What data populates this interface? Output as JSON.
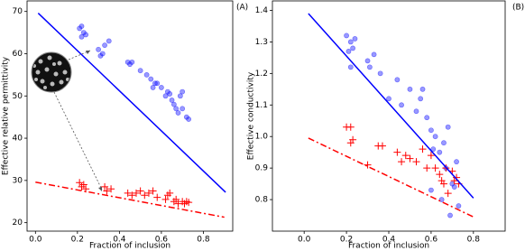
{
  "chart_data": [
    {
      "type": "scatter",
      "annotation": "(A)",
      "xlabel": "Fraction of inclusion",
      "ylabel": "Effective relative permittivity",
      "xlim": [
        -0.04,
        0.94
      ],
      "ylim": [
        18,
        72.5
      ],
      "xticks": [
        {
          "value": 0,
          "label": "0.0"
        },
        0.2,
        0.4,
        0.6,
        0.8
      ],
      "yticks": [
        20,
        30,
        40,
        50,
        60,
        70
      ],
      "series": [
        {
          "marker": "circle",
          "color": "#0000ff",
          "x": [
            0.21,
            0.22,
            0.23,
            0.24,
            0.22,
            0.3,
            0.32,
            0.33,
            0.35,
            0.31,
            0.44,
            0.46,
            0.45,
            0.5,
            0.53,
            0.55,
            0.56,
            0.57,
            0.6,
            0.62,
            0.63,
            0.65,
            0.66,
            0.67,
            0.68,
            0.7,
            0.72,
            0.69,
            0.7,
            0.73,
            0.58,
            0.64
          ],
          "y": [
            66,
            66.5,
            65,
            64.5,
            64,
            61,
            60,
            62,
            63,
            59.5,
            58,
            58,
            57.5,
            56,
            55,
            54,
            52,
            53,
            52,
            50,
            51,
            49,
            48,
            47,
            46,
            47,
            45,
            50,
            51,
            44.5,
            53,
            50.5
          ]
        },
        {
          "marker": "plus",
          "color": "#ff0000",
          "x": [
            0.21,
            0.22,
            0.23,
            0.24,
            0.33,
            0.34,
            0.36,
            0.44,
            0.46,
            0.48,
            0.5,
            0.52,
            0.54,
            0.56,
            0.58,
            0.62,
            0.63,
            0.64,
            0.66,
            0.67,
            0.68,
            0.7,
            0.71,
            0.72,
            0.73
          ],
          "y": [
            29.5,
            28.5,
            29,
            28,
            28.5,
            27.5,
            28,
            27,
            26.5,
            27,
            27.5,
            26.5,
            27,
            27.5,
            26,
            25.5,
            26.5,
            27,
            25,
            25.5,
            24.5,
            25,
            24.5,
            25,
            24.8
          ]
        },
        {
          "marker": "line",
          "style": "solid",
          "color": "#0000ff",
          "x": [
            0.013,
            0.906
          ],
          "y": [
            69.6,
            27.2
          ]
        },
        {
          "marker": "line",
          "style": "dashdot",
          "color": "#ff0000",
          "x": [
            0.0,
            0.9
          ],
          "y": [
            29.6,
            21.3
          ]
        }
      ]
    },
    {
      "type": "scatter",
      "annotation": "(B)",
      "xlabel": "Fraction of inclusion",
      "ylabel": "Effective conductivity",
      "xlim": [
        -0.15,
        0.95
      ],
      "ylim": [
        0.7,
        1.43
      ],
      "xticks": [
        {
          "value": 0,
          "label": "0.0"
        },
        0.2,
        0.4,
        0.6,
        0.8
      ],
      "yticks": [
        0.8,
        0.9,
        {
          "value": 1,
          "label": "1.0"
        },
        1.1,
        1.2,
        1.3,
        1.4
      ],
      "series": [
        {
          "marker": "circle",
          "color": "#0000ff",
          "x": [
            0.2,
            0.22,
            0.21,
            0.23,
            0.22,
            0.24,
            0.3,
            0.31,
            0.33,
            0.36,
            0.4,
            0.44,
            0.46,
            0.5,
            0.53,
            0.56,
            0.55,
            0.58,
            0.6,
            0.61,
            0.62,
            0.64,
            0.66,
            0.67,
            0.68,
            0.7,
            0.71,
            0.72,
            0.73,
            0.69,
            0.6,
            0.65
          ],
          "y": [
            1.32,
            1.3,
            1.27,
            1.28,
            1.22,
            1.31,
            1.24,
            1.22,
            1.26,
            1.2,
            1.12,
            1.18,
            1.1,
            1.15,
            1.08,
            1.15,
            1.12,
            1.06,
            1.02,
            0.96,
            1.0,
            0.95,
            0.98,
            0.9,
            1.03,
            0.85,
            0.84,
            0.92,
            0.78,
            0.75,
            0.83,
            0.8
          ]
        },
        {
          "marker": "plus",
          "color": "#ff0000",
          "x": [
            0.2,
            0.22,
            0.23,
            0.22,
            0.3,
            0.35,
            0.37,
            0.44,
            0.46,
            0.48,
            0.5,
            0.53,
            0.56,
            0.58,
            0.6,
            0.62,
            0.64,
            0.65,
            0.66,
            0.68,
            0.7,
            0.71,
            0.72,
            0.73,
            0.67
          ],
          "y": [
            1.03,
            1.03,
            0.99,
            0.98,
            0.91,
            0.97,
            0.97,
            0.95,
            0.92,
            0.94,
            0.93,
            0.92,
            0.96,
            0.9,
            0.94,
            0.9,
            0.88,
            0.86,
            0.85,
            0.82,
            0.89,
            0.86,
            0.87,
            0.85,
            0.9
          ]
        },
        {
          "marker": "line",
          "style": "solid",
          "color": "#0000ff",
          "x": [
            0.02,
            0.8
          ],
          "y": [
            1.39,
            0.805
          ]
        },
        {
          "marker": "line",
          "style": "dashdot",
          "color": "#ff0000",
          "x": [
            0.02,
            0.8
          ],
          "y": [
            0.995,
            0.745
          ]
        }
      ]
    }
  ]
}
